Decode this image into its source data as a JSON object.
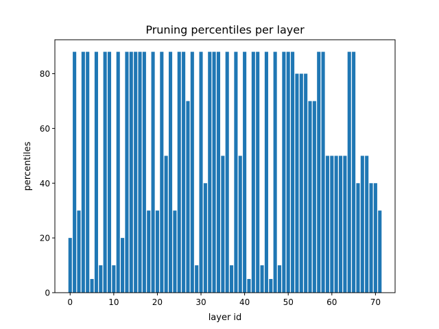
{
  "chart_data": {
    "type": "bar",
    "title": "Pruning percentiles per layer",
    "xlabel": "layer id",
    "ylabel": "percentiles",
    "xlim": [
      -3.5,
      74.5
    ],
    "ylim": [
      0,
      92.4
    ],
    "xticks": [
      0,
      10,
      20,
      30,
      40,
      50,
      60,
      70
    ],
    "yticks": [
      0,
      20,
      40,
      60,
      80
    ],
    "grid": false,
    "bar_color": "#1f77b4",
    "x": [
      0,
      1,
      2,
      3,
      4,
      5,
      6,
      7,
      8,
      9,
      10,
      11,
      12,
      13,
      14,
      15,
      16,
      17,
      18,
      19,
      20,
      21,
      22,
      23,
      24,
      25,
      26,
      27,
      28,
      29,
      30,
      31,
      32,
      33,
      34,
      35,
      36,
      37,
      38,
      39,
      40,
      41,
      42,
      43,
      44,
      45,
      46,
      47,
      48,
      49,
      50,
      51,
      52,
      53,
      54,
      55,
      56,
      57,
      58,
      59,
      60,
      61,
      62,
      63,
      64,
      65,
      66,
      67,
      68,
      69,
      70,
      71
    ],
    "values": [
      20,
      88,
      30,
      88,
      88,
      5,
      88,
      10,
      88,
      88,
      10,
      88,
      20,
      88,
      88,
      88,
      88,
      88,
      30,
      88,
      30,
      88,
      50,
      88,
      30,
      88,
      88,
      70,
      88,
      10,
      88,
      40,
      88,
      88,
      88,
      50,
      88,
      10,
      88,
      50,
      88,
      5,
      88,
      88,
      10,
      88,
      5,
      88,
      10,
      88,
      88,
      88,
      80,
      80,
      80,
      70,
      70,
      88,
      88,
      50,
      50,
      50,
      50,
      50,
      88,
      88,
      40,
      50,
      50,
      40,
      40,
      30
    ]
  }
}
